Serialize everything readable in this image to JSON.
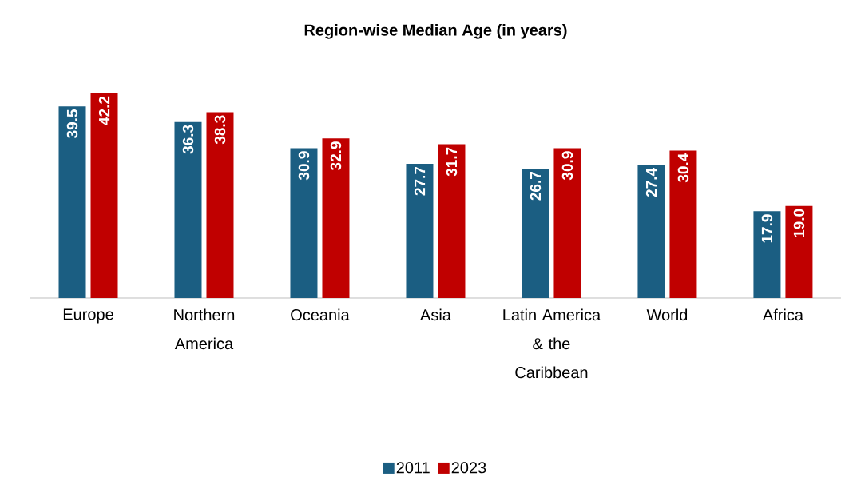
{
  "chart_data": {
    "type": "bar",
    "title": "Region-wise Median Age (in years)",
    "categories": [
      "Europe",
      "Northern America",
      "Oceania",
      "Asia",
      "Latin America & the Caribbean",
      "World",
      "Africa"
    ],
    "series": [
      {
        "name": "2011",
        "color": "#1b5e82",
        "values": [
          39.5,
          36.3,
          30.9,
          27.7,
          26.7,
          27.4,
          17.9
        ],
        "value_labels": [
          "39.5",
          "36.3",
          "30.9",
          "27.7",
          "26.7",
          "27.4",
          "17.9"
        ]
      },
      {
        "name": "2023",
        "color": "#c00000",
        "values": [
          42.2,
          38.3,
          32.9,
          31.7,
          30.9,
          30.4,
          19.0
        ],
        "value_labels": [
          "42.2",
          "38.3",
          "32.9",
          "31.7",
          "30.9",
          "30.4",
          "19.0"
        ]
      }
    ],
    "legend": "bottom"
  }
}
